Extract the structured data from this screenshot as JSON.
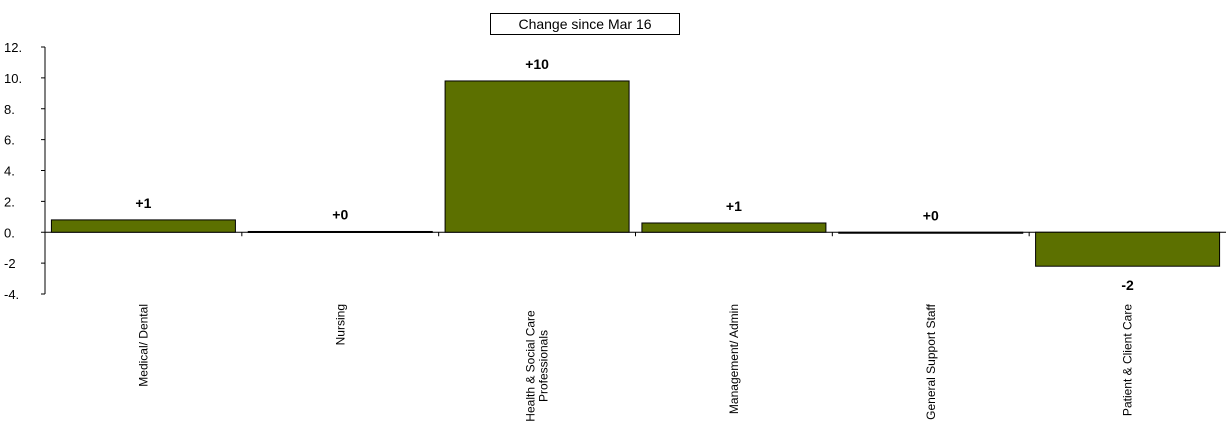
{
  "chart_data": {
    "type": "bar",
    "title": "Change since Mar 16",
    "categories": [
      "Medical/ Dental",
      "Nursing",
      "Health & Social Care Professionals",
      "Management/ Admin",
      "General Support Staff",
      "Patient & Client Care"
    ],
    "values": [
      0.8,
      0.05,
      9.8,
      0.6,
      0.0,
      -2.2
    ],
    "data_labels": [
      "+1",
      "+0",
      "+10",
      "+1",
      "+0",
      "-2"
    ],
    "yticks": [
      "12.",
      "10.",
      "8.",
      "6.",
      "4.",
      "2.",
      "0.",
      "-2",
      "-4."
    ],
    "ylim": [
      -4,
      12
    ],
    "bar_color": "#5C7000",
    "grid": false,
    "legend": "none"
  }
}
